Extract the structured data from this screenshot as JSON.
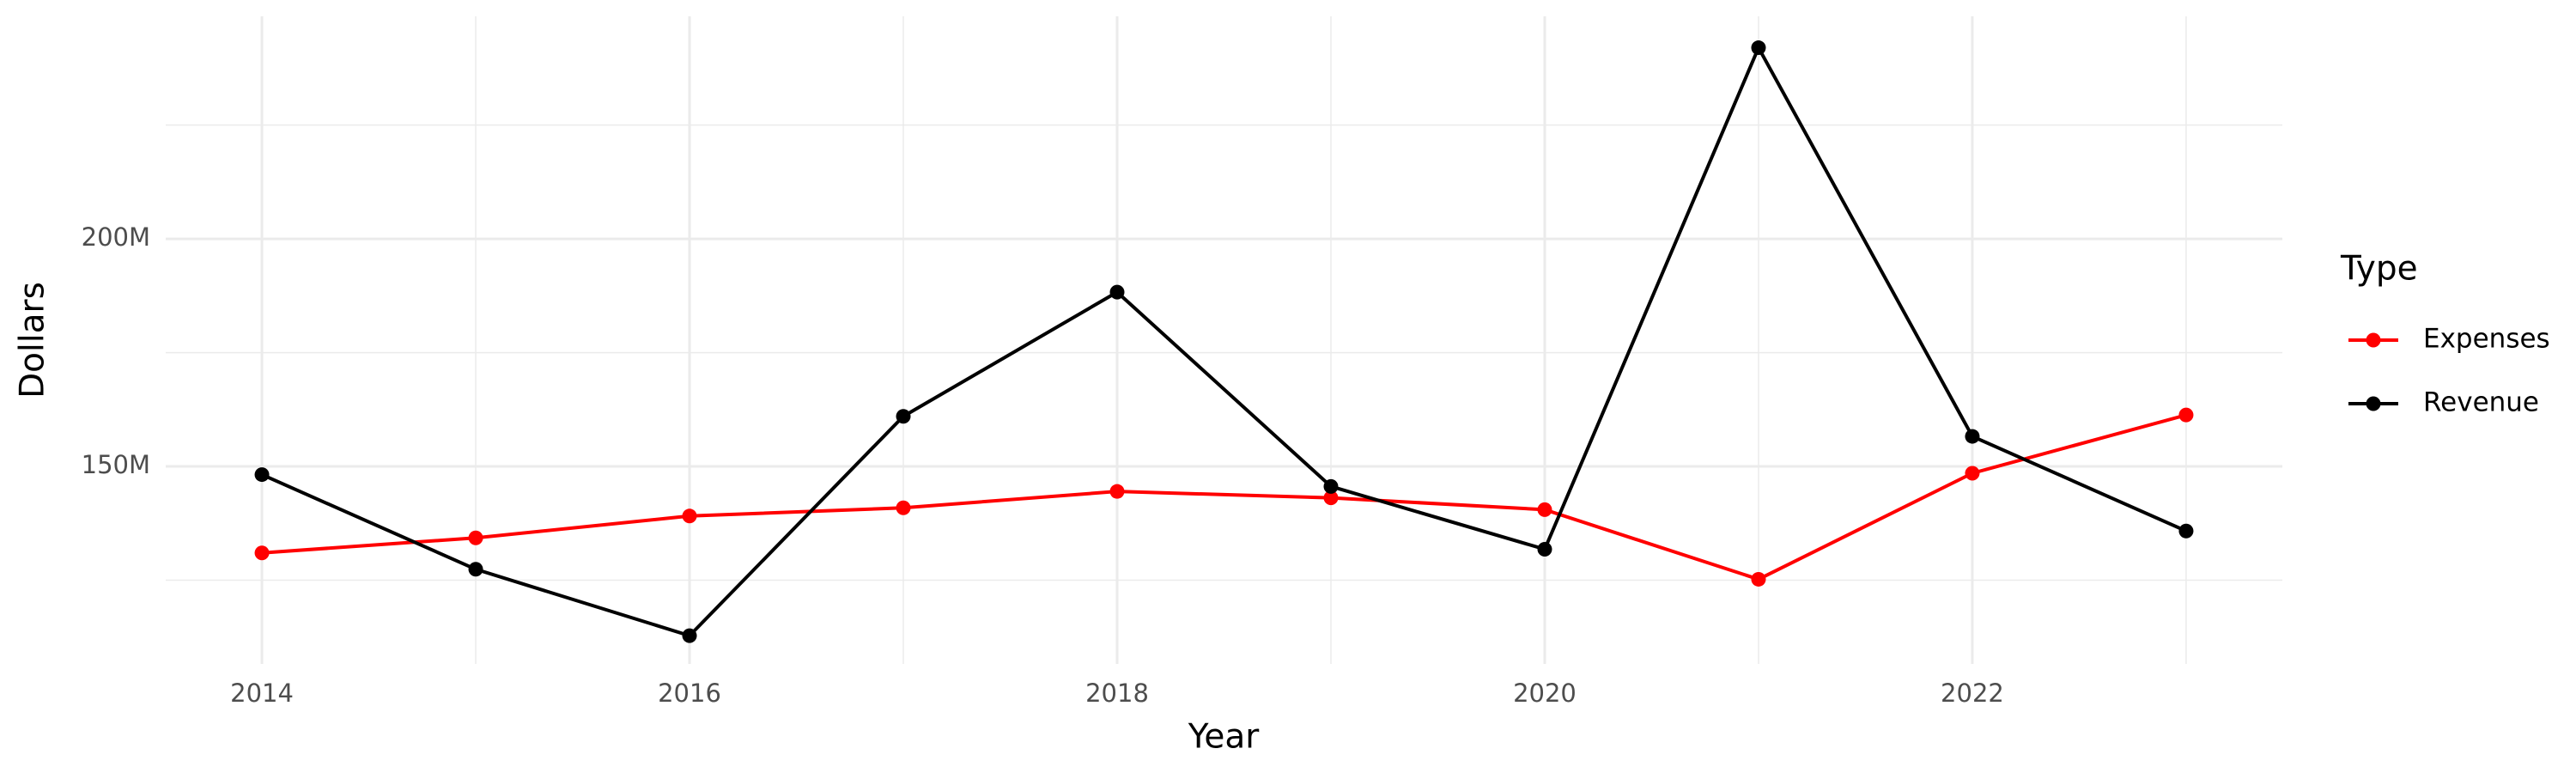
{
  "chart_data": {
    "type": "line",
    "x_label": "Year",
    "y_label": "Dollars",
    "legend_title": "Type",
    "legend": "right",
    "grid": true,
    "x": [
      2014,
      2015,
      2016,
      2017,
      2018,
      2019,
      2020,
      2021,
      2022,
      2023
    ],
    "series": [
      {
        "name": "Expenses",
        "color": "#ff0000",
        "values": [
          131000000,
          134300000,
          139100000,
          140900000,
          144500000,
          143100000,
          140500000,
          125200000,
          148500000,
          161300000
        ]
      },
      {
        "name": "Revenue",
        "color": "#000000",
        "values": [
          148200000,
          127400000,
          112800000,
          161000000,
          188300000,
          145600000,
          131800000,
          242000000,
          156600000,
          135800000
        ]
      }
    ],
    "xlim": [
      2013.55,
      2023.45
    ],
    "xticks": [
      2014,
      2016,
      2018,
      2020,
      2022
    ],
    "xminor": [
      2015,
      2017,
      2019,
      2021,
      2023
    ],
    "ylim": [
      106600000,
      248900000
    ],
    "yticks": [
      {
        "value": 150000000,
        "label": "150M"
      },
      {
        "value": 200000000,
        "label": "200M"
      }
    ],
    "yminor": [
      125000000,
      175000000,
      225000000
    ]
  }
}
